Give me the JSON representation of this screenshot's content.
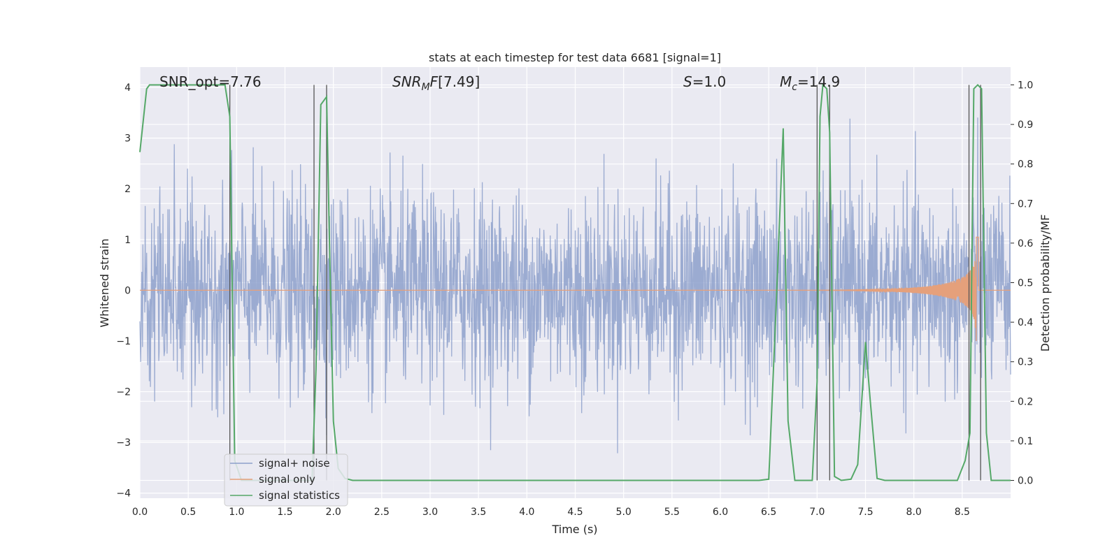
{
  "chart_data": {
    "type": "line",
    "title": "stats at each timestep for test data 6681 [signal=1]",
    "xlabel": "Time (s)",
    "ylabel": "Whitened strain",
    "y2label": "Detection probability/MF",
    "xlim": [
      0.0,
      9.0
    ],
    "ylim": [
      -4.1,
      4.4
    ],
    "y2lim": [
      -0.045,
      1.045
    ],
    "x_ticks": [
      "0.0",
      "0.5",
      "1.0",
      "1.5",
      "2.0",
      "2.5",
      "3.0",
      "3.5",
      "4.0",
      "4.5",
      "5.0",
      "5.5",
      "6.0",
      "6.5",
      "7.0",
      "7.5",
      "8.0",
      "8.5"
    ],
    "y_ticks": [
      "−4",
      "−3",
      "−2",
      "−1",
      "0",
      "1",
      "2",
      "3",
      "4"
    ],
    "y2_ticks": [
      "0.0",
      "0.1",
      "0.2",
      "0.3",
      "0.4",
      "0.5",
      "0.6",
      "0.7",
      "0.8",
      "0.9",
      "1.0"
    ],
    "grid": true,
    "legend_position": "lower-left",
    "annotations": [
      {
        "id": "snr-opt",
        "text": "SNR_opt=7.76"
      },
      {
        "id": "snr-mf",
        "text": "[7.49]"
      },
      {
        "id": "s-value",
        "text": "=1.0"
      },
      {
        "id": "mc-value",
        "text": "=14.9"
      }
    ],
    "series": [
      {
        "name": "signal+ noise",
        "color": "#8da0cb",
        "axis": "left",
        "description_level": "whitened noise, approx. Gaussian, envelope about ±2.5 with peaks near ±4",
        "sample_rate_hz": 256
      },
      {
        "name": "signal only",
        "color": "#e5a07b",
        "axis": "left",
        "chirp_start_s": 5.5,
        "chirp_peak_s": 8.65,
        "chirp_peak_amplitude": 1.3
      },
      {
        "name": "signal statistics",
        "color": "#55a868",
        "axis": "right",
        "x": [
          0.0,
          0.07,
          0.1,
          0.2,
          0.3,
          0.4,
          0.5,
          0.6,
          0.7,
          0.8,
          0.88,
          0.93,
          0.98,
          1.05,
          1.5,
          1.78,
          1.82,
          1.87,
          1.93,
          1.96,
          2.0,
          2.05,
          2.12,
          2.2,
          2.3,
          6.4,
          6.5,
          6.57,
          6.65,
          6.7,
          6.77,
          6.95,
          7.0,
          7.03,
          7.06,
          7.1,
          7.13,
          7.18,
          7.25,
          7.35,
          7.42,
          7.5,
          7.55,
          7.62,
          7.7,
          8.45,
          8.53,
          8.58,
          8.62,
          8.66,
          8.7,
          8.75,
          8.8,
          8.88,
          9.0
        ],
        "y": [
          0.83,
          0.99,
          1.0,
          1.0,
          1.0,
          1.0,
          1.0,
          1.0,
          1.0,
          1.0,
          1.0,
          0.92,
          0.05,
          0.0,
          0.0,
          0.0,
          0.28,
          0.95,
          0.97,
          0.6,
          0.15,
          0.03,
          0.005,
          0.0,
          0.0,
          0.0,
          0.003,
          0.4,
          0.89,
          0.15,
          0.0,
          0.0,
          0.25,
          0.92,
          1.0,
          0.99,
          0.88,
          0.01,
          0.0,
          0.003,
          0.04,
          0.35,
          0.2,
          0.005,
          0.0,
          0.0,
          0.05,
          0.12,
          0.99,
          1.0,
          0.99,
          0.12,
          0.0,
          0.0,
          0.0
        ]
      }
    ],
    "vertical_markers_s": [
      0.93,
      1.8,
      1.93,
      7.0,
      7.13,
      8.57,
      8.69
    ]
  },
  "legend": {
    "items": [
      {
        "label": "signal+ noise",
        "color": "#8da0cb"
      },
      {
        "label": "signal only",
        "color": "#e5a07b"
      },
      {
        "label": "signal statistics",
        "color": "#55a868"
      }
    ]
  }
}
